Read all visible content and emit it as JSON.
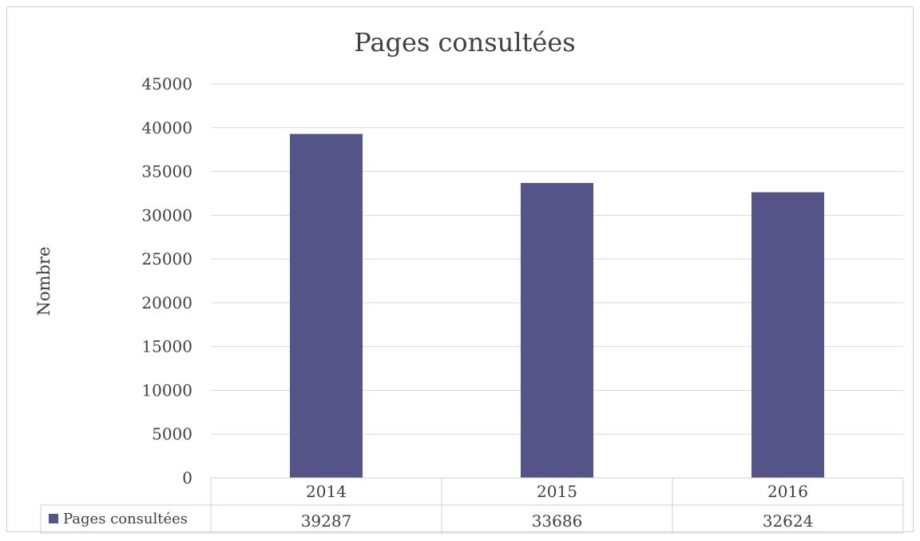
{
  "chart_data": {
    "type": "bar",
    "title": "Pages consultées",
    "xlabel": "",
    "ylabel": "Nombre",
    "categories": [
      "2014",
      "2015",
      "2016"
    ],
    "series": [
      {
        "name": "Pages consultées",
        "values": [
          39287,
          33686,
          32624
        ]
      }
    ],
    "ylim": [
      0,
      45000
    ],
    "yticks": [
      0,
      5000,
      10000,
      15000,
      20000,
      25000,
      30000,
      35000,
      40000,
      45000
    ],
    "grid": true,
    "legend": "data-table-left",
    "data_table": true,
    "colors": {
      "bar": "#545488",
      "grid": "#d9d9d9",
      "text": "#404040",
      "frame": "#d0d0d0"
    }
  }
}
